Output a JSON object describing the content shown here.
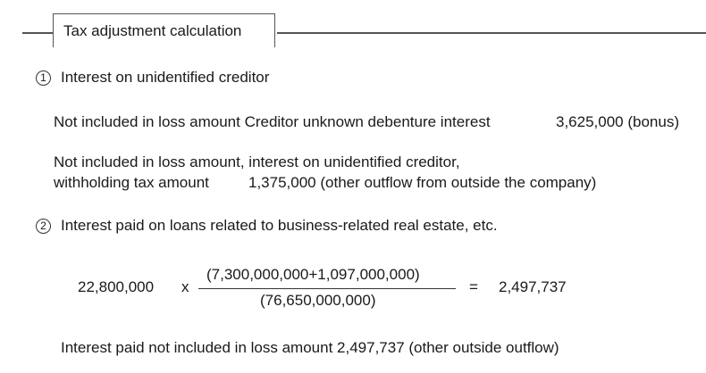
{
  "header": {
    "title": "Tax adjustment calculation"
  },
  "section1": {
    "marker": "1",
    "heading": "Interest on unidentified creditor",
    "line1_label": "Not included in loss amount Creditor unknown debenture interest",
    "line1_value": "3,625,000 (bonus)",
    "line2a": "Not included in loss amount, interest on unidentified creditor,",
    "line2b_label": "withholding tax amount",
    "line2b_value": "1,375,000 (other outflow from outside the company)"
  },
  "section2": {
    "marker": "2",
    "heading": "Interest paid on loans related to business-related real estate, etc.",
    "formula": {
      "multiplicand": "22,800,000",
      "times": "x",
      "numerator": "(7,300,000,000+1,097,000,000)",
      "denominator": "(76,650,000,000)",
      "equals": "=",
      "result": "2,497,737"
    },
    "conclusion": "Interest paid not included in loss amount 2,497,737 (other outside outflow)"
  }
}
